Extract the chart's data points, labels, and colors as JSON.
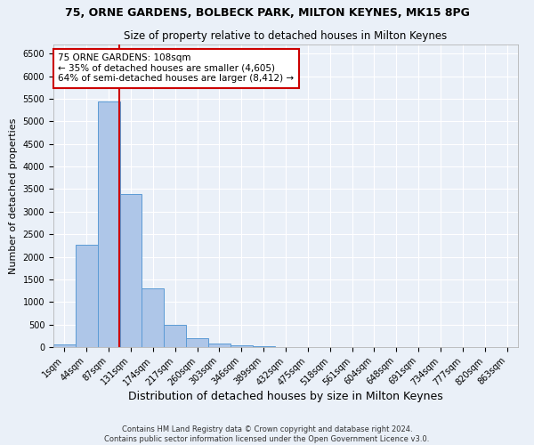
{
  "title1": "75, ORNE GARDENS, BOLBECK PARK, MILTON KEYNES, MK15 8PG",
  "title2": "Size of property relative to detached houses in Milton Keynes",
  "xlabel": "Distribution of detached houses by size in Milton Keynes",
  "ylabel": "Number of detached properties",
  "footer1": "Contains HM Land Registry data © Crown copyright and database right 2024.",
  "footer2": "Contains public sector information licensed under the Open Government Licence v3.0.",
  "bar_labels": [
    "1sqm",
    "44sqm",
    "87sqm",
    "131sqm",
    "174sqm",
    "217sqm",
    "260sqm",
    "303sqm",
    "346sqm",
    "389sqm",
    "432sqm",
    "475sqm",
    "518sqm",
    "561sqm",
    "604sqm",
    "648sqm",
    "691sqm",
    "734sqm",
    "777sqm",
    "820sqm",
    "863sqm"
  ],
  "bar_values": [
    60,
    2270,
    5430,
    3380,
    1310,
    490,
    190,
    80,
    40,
    10,
    0,
    0,
    0,
    0,
    0,
    0,
    0,
    0,
    0,
    0,
    0
  ],
  "bar_color": "#aec6e8",
  "bar_edge_color": "#5b9bd5",
  "property_label": "75 ORNE GARDENS: 108sqm",
  "annotation_line1": "← 35% of detached houses are smaller (4,605)",
  "annotation_line2": "64% of semi-detached houses are larger (8,412) →",
  "vline_color": "#cc0000",
  "vline_x": 2.48,
  "ylim": [
    0,
    6700
  ],
  "yticks": [
    0,
    500,
    1000,
    1500,
    2000,
    2500,
    3000,
    3500,
    4000,
    4500,
    5000,
    5500,
    6000,
    6500
  ],
  "bg_color": "#eaf0f8",
  "annotation_box_color": "#ffffff",
  "annotation_box_edge": "#cc0000",
  "grid_color": "#ffffff",
  "title1_fontsize": 9,
  "title2_fontsize": 8.5,
  "xlabel_fontsize": 9,
  "ylabel_fontsize": 8,
  "tick_fontsize": 7,
  "annotation_fontsize": 7.5,
  "footer_fontsize": 6
}
